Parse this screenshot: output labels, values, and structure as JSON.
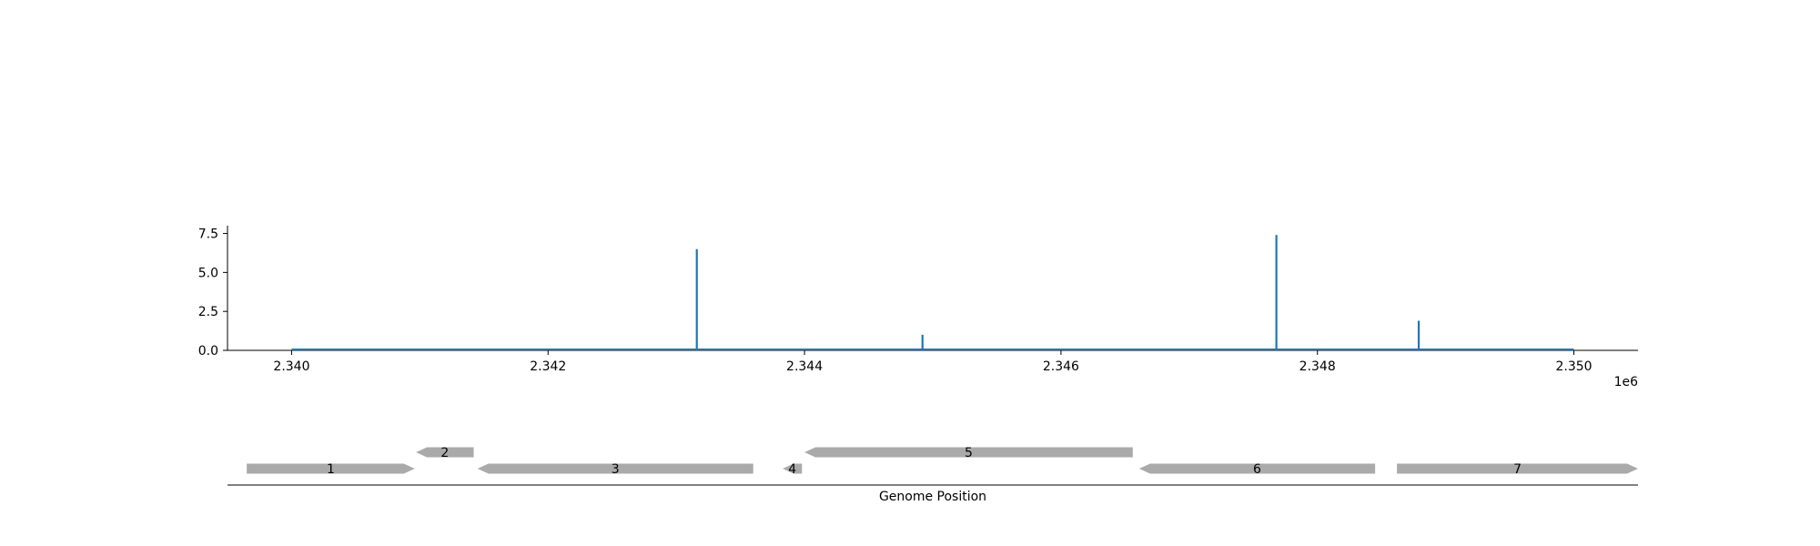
{
  "chart_data": [
    {
      "type": "bar",
      "title": "",
      "xlabel": "",
      "ylabel": "",
      "x_offset_label": "1e6",
      "xlim": [
        2.3395,
        2.3505
      ],
      "ylim": [
        0,
        8
      ],
      "x_ticks": [
        2.34,
        2.342,
        2.344,
        2.346,
        2.348,
        2.35
      ],
      "x_tick_labels": [
        "2.340",
        "2.342",
        "2.344",
        "2.346",
        "2.348",
        "2.350"
      ],
      "y_ticks": [
        0.0,
        2.5,
        5.0,
        7.5
      ],
      "y_tick_labels": [
        "0.0",
        "2.5",
        "5.0",
        "7.5"
      ],
      "baseline": {
        "start": 2.34,
        "end": 2.35
      },
      "series": [
        {
          "x": [
            2.34316,
            2.34492,
            2.34768,
            2.34879
          ],
          "values": [
            6.5,
            1.0,
            7.4,
            1.9
          ]
        }
      ],
      "color": "#1f77b4",
      "grid": false
    },
    {
      "type": "gene-track",
      "xlabel": "Genome Position",
      "xlim": [
        2.3395,
        2.3505
      ],
      "genes": [
        {
          "label": "1",
          "start": 2.33965,
          "end": 2.34096,
          "strand": "+",
          "row": 0
        },
        {
          "label": "2",
          "start": 2.34097,
          "end": 2.34142,
          "strand": "-",
          "row": 1
        },
        {
          "label": "3",
          "start": 2.34145,
          "end": 2.3436,
          "strand": "-",
          "row": 0
        },
        {
          "label": "4",
          "start": 2.34383,
          "end": 2.34398,
          "strand": "-",
          "row": 0
        },
        {
          "label": "5",
          "start": 2.344,
          "end": 2.34656,
          "strand": "-",
          "row": 1
        },
        {
          "label": "6",
          "start": 2.34661,
          "end": 2.34845,
          "strand": "-",
          "row": 0
        },
        {
          "label": "7",
          "start": 2.34862,
          "end": 2.3505,
          "strand": "+",
          "row": 0
        }
      ],
      "gene_color": "#aaaaaa"
    }
  ]
}
